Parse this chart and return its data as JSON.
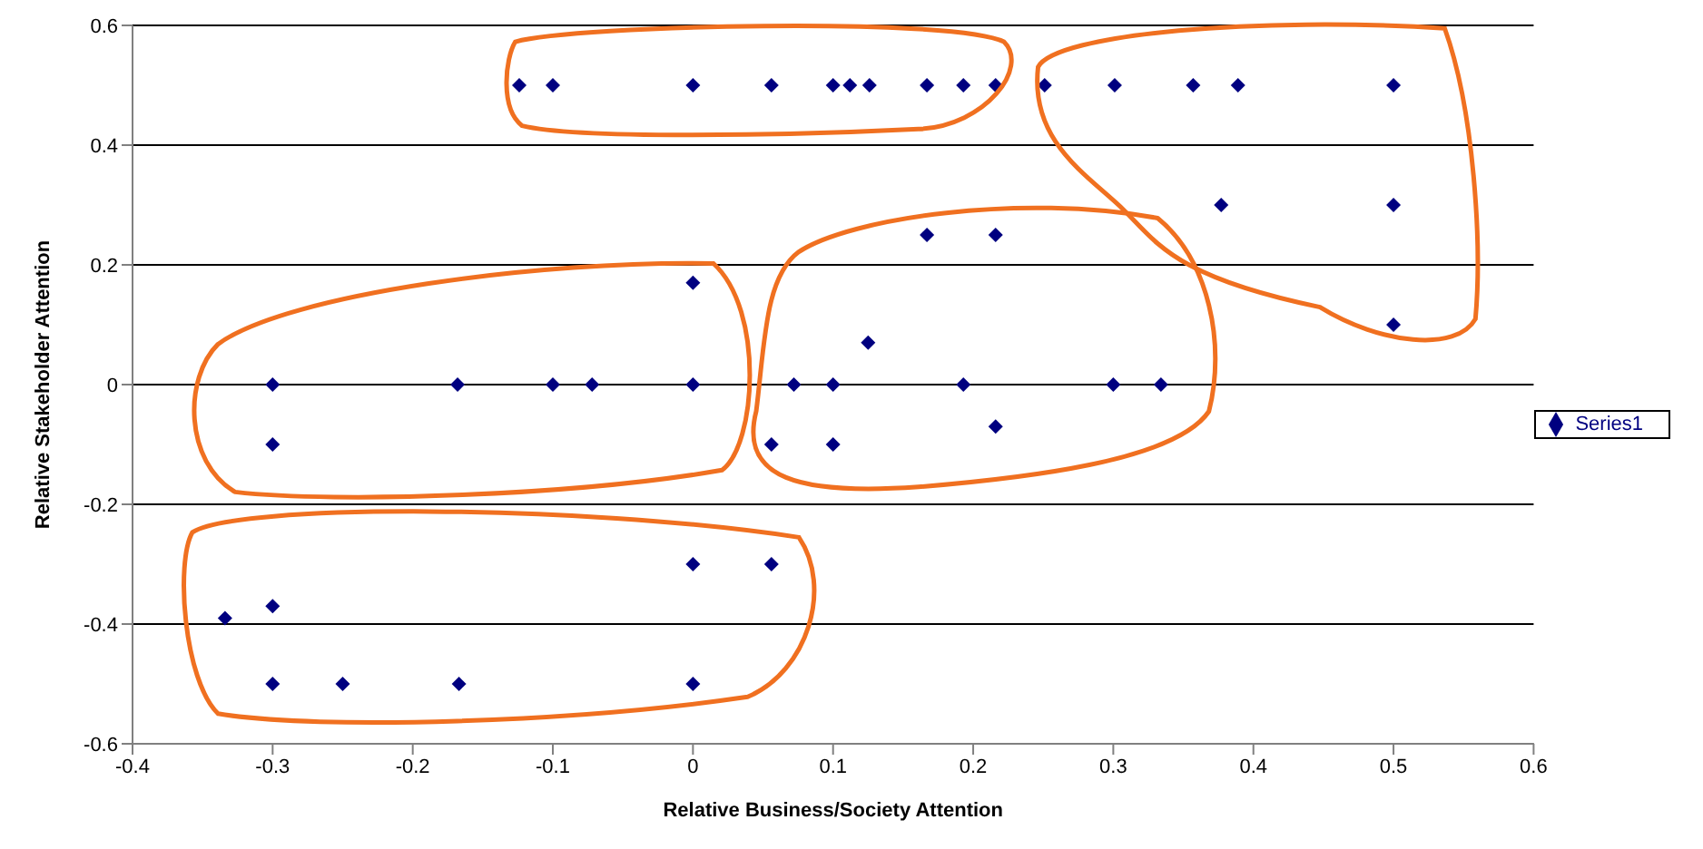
{
  "chart_data": {
    "type": "scatter",
    "xlabel": "Relative Business/Society Attention",
    "ylabel": "Relative Stakeholder Attention",
    "x": [
      -0.124,
      -0.1,
      0,
      0.056,
      0.1,
      0.112,
      0.126,
      0.167,
      0.193,
      0.216,
      0.251,
      0.301,
      0.357,
      0.389,
      0.5,
      0.377,
      0.5,
      0.167,
      0.216,
      0,
      0.5,
      0.125,
      -0.3,
      -0.168,
      -0.1,
      -0.072,
      0,
      0.072,
      0.1,
      0.193,
      0.3,
      0.334,
      0.216,
      -0.3,
      0.056,
      0.1,
      0,
      0.056,
      -0.3,
      -0.334,
      -0.3,
      -0.25,
      -0.167,
      0
    ],
    "series": [
      {
        "name": "Series1",
        "color": "#000080",
        "values": [
          0.5,
          0.5,
          0.5,
          0.5,
          0.5,
          0.5,
          0.5,
          0.5,
          0.5,
          0.5,
          0.5,
          0.5,
          0.5,
          0.5,
          0.5,
          0.3,
          0.3,
          0.25,
          0.25,
          0.17,
          0.1,
          0.07,
          0,
          0,
          0,
          0,
          0,
          0,
          0,
          0,
          0,
          0,
          -0.07,
          -0.1,
          -0.1,
          -0.1,
          -0.3,
          -0.3,
          -0.37,
          -0.39,
          -0.5,
          -0.5,
          -0.5,
          -0.5
        ]
      }
    ],
    "xlim": [
      -0.4,
      0.6
    ],
    "xticks": [
      -0.4,
      -0.3,
      -0.2,
      -0.1,
      0,
      0.1,
      0.2,
      0.3,
      0.4,
      0.5,
      0.6
    ],
    "ylim": [
      -0.6,
      0.6
    ],
    "yticks": [
      -0.6,
      -0.4,
      -0.2,
      0,
      0.2,
      0.4,
      0.6
    ],
    "grid": "y",
    "legend": "right",
    "marker": "diamond"
  }
}
